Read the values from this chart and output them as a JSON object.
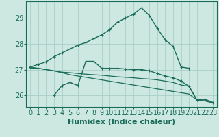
{
  "xlabel": "Humidex (Indice chaleur)",
  "background_color": "#cce8e0",
  "grid_color": "#aacfc8",
  "line_color": "#1a6b5a",
  "xlim": [
    -0.5,
    23.5
  ],
  "ylim": [
    25.55,
    29.65
  ],
  "yticks": [
    26,
    27,
    28,
    29
  ],
  "xticks": [
    0,
    1,
    2,
    3,
    4,
    5,
    6,
    7,
    8,
    9,
    10,
    11,
    12,
    13,
    14,
    15,
    16,
    17,
    18,
    19,
    20,
    21,
    22,
    23
  ],
  "line1_x": [
    0,
    1,
    2,
    3,
    4,
    5,
    6,
    7,
    8,
    9,
    10,
    11,
    12,
    13,
    14,
    15,
    16,
    17,
    18,
    19,
    20
  ],
  "line1_y": [
    27.1,
    27.2,
    27.3,
    27.5,
    27.65,
    27.8,
    27.95,
    28.05,
    28.2,
    28.35,
    28.55,
    28.85,
    29.0,
    29.15,
    29.4,
    29.1,
    28.6,
    28.15,
    27.9,
    27.1,
    27.05
  ],
  "line2_x": [
    0,
    1,
    2,
    3,
    4,
    5,
    6,
    7,
    8,
    9,
    10,
    11,
    12,
    13,
    14,
    15,
    16,
    17,
    18,
    19,
    20,
    21,
    22,
    23
  ],
  "line2_y": [
    27.05,
    27.05,
    27.0,
    26.95,
    26.9,
    26.88,
    26.85,
    26.82,
    26.8,
    26.78,
    26.75,
    26.72,
    26.7,
    26.68,
    26.65,
    26.63,
    26.6,
    26.55,
    26.5,
    26.4,
    26.35,
    25.8,
    25.82,
    25.72
  ],
  "line3_x": [
    0,
    1,
    2,
    3,
    4,
    5,
    6,
    7,
    8,
    9,
    10,
    11,
    12,
    13,
    14,
    15,
    16,
    17,
    18,
    19,
    20,
    21,
    22,
    23
  ],
  "line3_y": [
    27.1,
    27.05,
    27.0,
    26.95,
    26.88,
    26.8,
    26.75,
    26.7,
    26.65,
    26.6,
    26.55,
    26.5,
    26.45,
    26.4,
    26.35,
    26.3,
    26.25,
    26.2,
    26.15,
    26.1,
    26.05,
    25.82,
    25.78,
    25.7
  ],
  "line4_x": [
    3,
    4,
    5,
    6,
    7,
    8,
    9,
    10,
    11,
    12,
    13,
    14,
    15,
    16,
    17,
    18,
    19,
    20,
    21,
    22,
    23
  ],
  "line4_y": [
    26.0,
    26.38,
    26.5,
    26.38,
    27.32,
    27.32,
    27.05,
    27.05,
    27.05,
    27.02,
    27.0,
    27.0,
    26.95,
    26.85,
    26.75,
    26.68,
    26.55,
    26.35,
    25.82,
    25.85,
    25.72
  ],
  "fontsize_label": 8,
  "fontsize_tick": 7
}
